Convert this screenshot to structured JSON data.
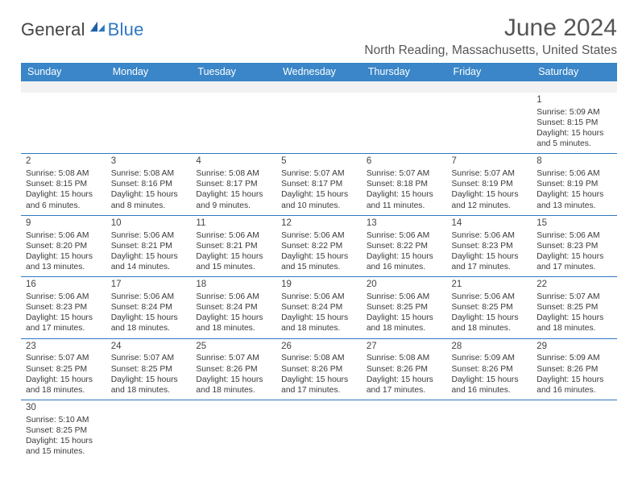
{
  "brand": {
    "word1": "General",
    "word2": "Blue",
    "accent_color": "#2e78c2"
  },
  "title": "June 2024",
  "location": "North Reading, Massachusetts, United States",
  "colors": {
    "header_bg": "#3a86c8",
    "header_text": "#ffffff",
    "rule": "#2e78c2",
    "body_text": "#3a3a3a",
    "title_text": "#555555",
    "blank_bg": "#f2f2f2"
  },
  "day_headers": [
    "Sunday",
    "Monday",
    "Tuesday",
    "Wednesday",
    "Thursday",
    "Friday",
    "Saturday"
  ],
  "weeks": [
    [
      null,
      null,
      null,
      null,
      null,
      null,
      {
        "n": "1",
        "sunrise": "Sunrise: 5:09 AM",
        "sunset": "Sunset: 8:15 PM",
        "daylight": "Daylight: 15 hours and 5 minutes."
      }
    ],
    [
      {
        "n": "2",
        "sunrise": "Sunrise: 5:08 AM",
        "sunset": "Sunset: 8:15 PM",
        "daylight": "Daylight: 15 hours and 6 minutes."
      },
      {
        "n": "3",
        "sunrise": "Sunrise: 5:08 AM",
        "sunset": "Sunset: 8:16 PM",
        "daylight": "Daylight: 15 hours and 8 minutes."
      },
      {
        "n": "4",
        "sunrise": "Sunrise: 5:08 AM",
        "sunset": "Sunset: 8:17 PM",
        "daylight": "Daylight: 15 hours and 9 minutes."
      },
      {
        "n": "5",
        "sunrise": "Sunrise: 5:07 AM",
        "sunset": "Sunset: 8:17 PM",
        "daylight": "Daylight: 15 hours and 10 minutes."
      },
      {
        "n": "6",
        "sunrise": "Sunrise: 5:07 AM",
        "sunset": "Sunset: 8:18 PM",
        "daylight": "Daylight: 15 hours and 11 minutes."
      },
      {
        "n": "7",
        "sunrise": "Sunrise: 5:07 AM",
        "sunset": "Sunset: 8:19 PM",
        "daylight": "Daylight: 15 hours and 12 minutes."
      },
      {
        "n": "8",
        "sunrise": "Sunrise: 5:06 AM",
        "sunset": "Sunset: 8:19 PM",
        "daylight": "Daylight: 15 hours and 13 minutes."
      }
    ],
    [
      {
        "n": "9",
        "sunrise": "Sunrise: 5:06 AM",
        "sunset": "Sunset: 8:20 PM",
        "daylight": "Daylight: 15 hours and 13 minutes."
      },
      {
        "n": "10",
        "sunrise": "Sunrise: 5:06 AM",
        "sunset": "Sunset: 8:21 PM",
        "daylight": "Daylight: 15 hours and 14 minutes."
      },
      {
        "n": "11",
        "sunrise": "Sunrise: 5:06 AM",
        "sunset": "Sunset: 8:21 PM",
        "daylight": "Daylight: 15 hours and 15 minutes."
      },
      {
        "n": "12",
        "sunrise": "Sunrise: 5:06 AM",
        "sunset": "Sunset: 8:22 PM",
        "daylight": "Daylight: 15 hours and 15 minutes."
      },
      {
        "n": "13",
        "sunrise": "Sunrise: 5:06 AM",
        "sunset": "Sunset: 8:22 PM",
        "daylight": "Daylight: 15 hours and 16 minutes."
      },
      {
        "n": "14",
        "sunrise": "Sunrise: 5:06 AM",
        "sunset": "Sunset: 8:23 PM",
        "daylight": "Daylight: 15 hours and 17 minutes."
      },
      {
        "n": "15",
        "sunrise": "Sunrise: 5:06 AM",
        "sunset": "Sunset: 8:23 PM",
        "daylight": "Daylight: 15 hours and 17 minutes."
      }
    ],
    [
      {
        "n": "16",
        "sunrise": "Sunrise: 5:06 AM",
        "sunset": "Sunset: 8:23 PM",
        "daylight": "Daylight: 15 hours and 17 minutes."
      },
      {
        "n": "17",
        "sunrise": "Sunrise: 5:06 AM",
        "sunset": "Sunset: 8:24 PM",
        "daylight": "Daylight: 15 hours and 18 minutes."
      },
      {
        "n": "18",
        "sunrise": "Sunrise: 5:06 AM",
        "sunset": "Sunset: 8:24 PM",
        "daylight": "Daylight: 15 hours and 18 minutes."
      },
      {
        "n": "19",
        "sunrise": "Sunrise: 5:06 AM",
        "sunset": "Sunset: 8:24 PM",
        "daylight": "Daylight: 15 hours and 18 minutes."
      },
      {
        "n": "20",
        "sunrise": "Sunrise: 5:06 AM",
        "sunset": "Sunset: 8:25 PM",
        "daylight": "Daylight: 15 hours and 18 minutes."
      },
      {
        "n": "21",
        "sunrise": "Sunrise: 5:06 AM",
        "sunset": "Sunset: 8:25 PM",
        "daylight": "Daylight: 15 hours and 18 minutes."
      },
      {
        "n": "22",
        "sunrise": "Sunrise: 5:07 AM",
        "sunset": "Sunset: 8:25 PM",
        "daylight": "Daylight: 15 hours and 18 minutes."
      }
    ],
    [
      {
        "n": "23",
        "sunrise": "Sunrise: 5:07 AM",
        "sunset": "Sunset: 8:25 PM",
        "daylight": "Daylight: 15 hours and 18 minutes."
      },
      {
        "n": "24",
        "sunrise": "Sunrise: 5:07 AM",
        "sunset": "Sunset: 8:25 PM",
        "daylight": "Daylight: 15 hours and 18 minutes."
      },
      {
        "n": "25",
        "sunrise": "Sunrise: 5:07 AM",
        "sunset": "Sunset: 8:26 PM",
        "daylight": "Daylight: 15 hours and 18 minutes."
      },
      {
        "n": "26",
        "sunrise": "Sunrise: 5:08 AM",
        "sunset": "Sunset: 8:26 PM",
        "daylight": "Daylight: 15 hours and 17 minutes."
      },
      {
        "n": "27",
        "sunrise": "Sunrise: 5:08 AM",
        "sunset": "Sunset: 8:26 PM",
        "daylight": "Daylight: 15 hours and 17 minutes."
      },
      {
        "n": "28",
        "sunrise": "Sunrise: 5:09 AM",
        "sunset": "Sunset: 8:26 PM",
        "daylight": "Daylight: 15 hours and 16 minutes."
      },
      {
        "n": "29",
        "sunrise": "Sunrise: 5:09 AM",
        "sunset": "Sunset: 8:26 PM",
        "daylight": "Daylight: 15 hours and 16 minutes."
      }
    ],
    [
      {
        "n": "30",
        "sunrise": "Sunrise: 5:10 AM",
        "sunset": "Sunset: 8:25 PM",
        "daylight": "Daylight: 15 hours and 15 minutes."
      },
      null,
      null,
      null,
      null,
      null,
      null
    ]
  ]
}
